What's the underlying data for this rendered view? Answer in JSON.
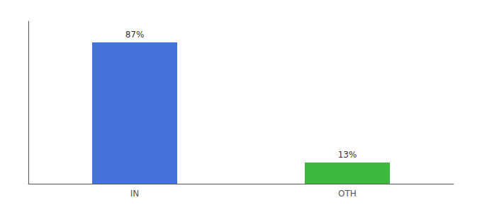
{
  "chart_data": {
    "type": "bar",
    "categories": [
      "IN",
      "OTH"
    ],
    "values": [
      87,
      13
    ],
    "value_labels": [
      "87%",
      "13%"
    ],
    "colors": [
      "#4472db",
      "#3dba3d"
    ],
    "ylim": [
      0,
      100
    ],
    "data_labels": true,
    "grid": false,
    "tick_labels": "x"
  }
}
